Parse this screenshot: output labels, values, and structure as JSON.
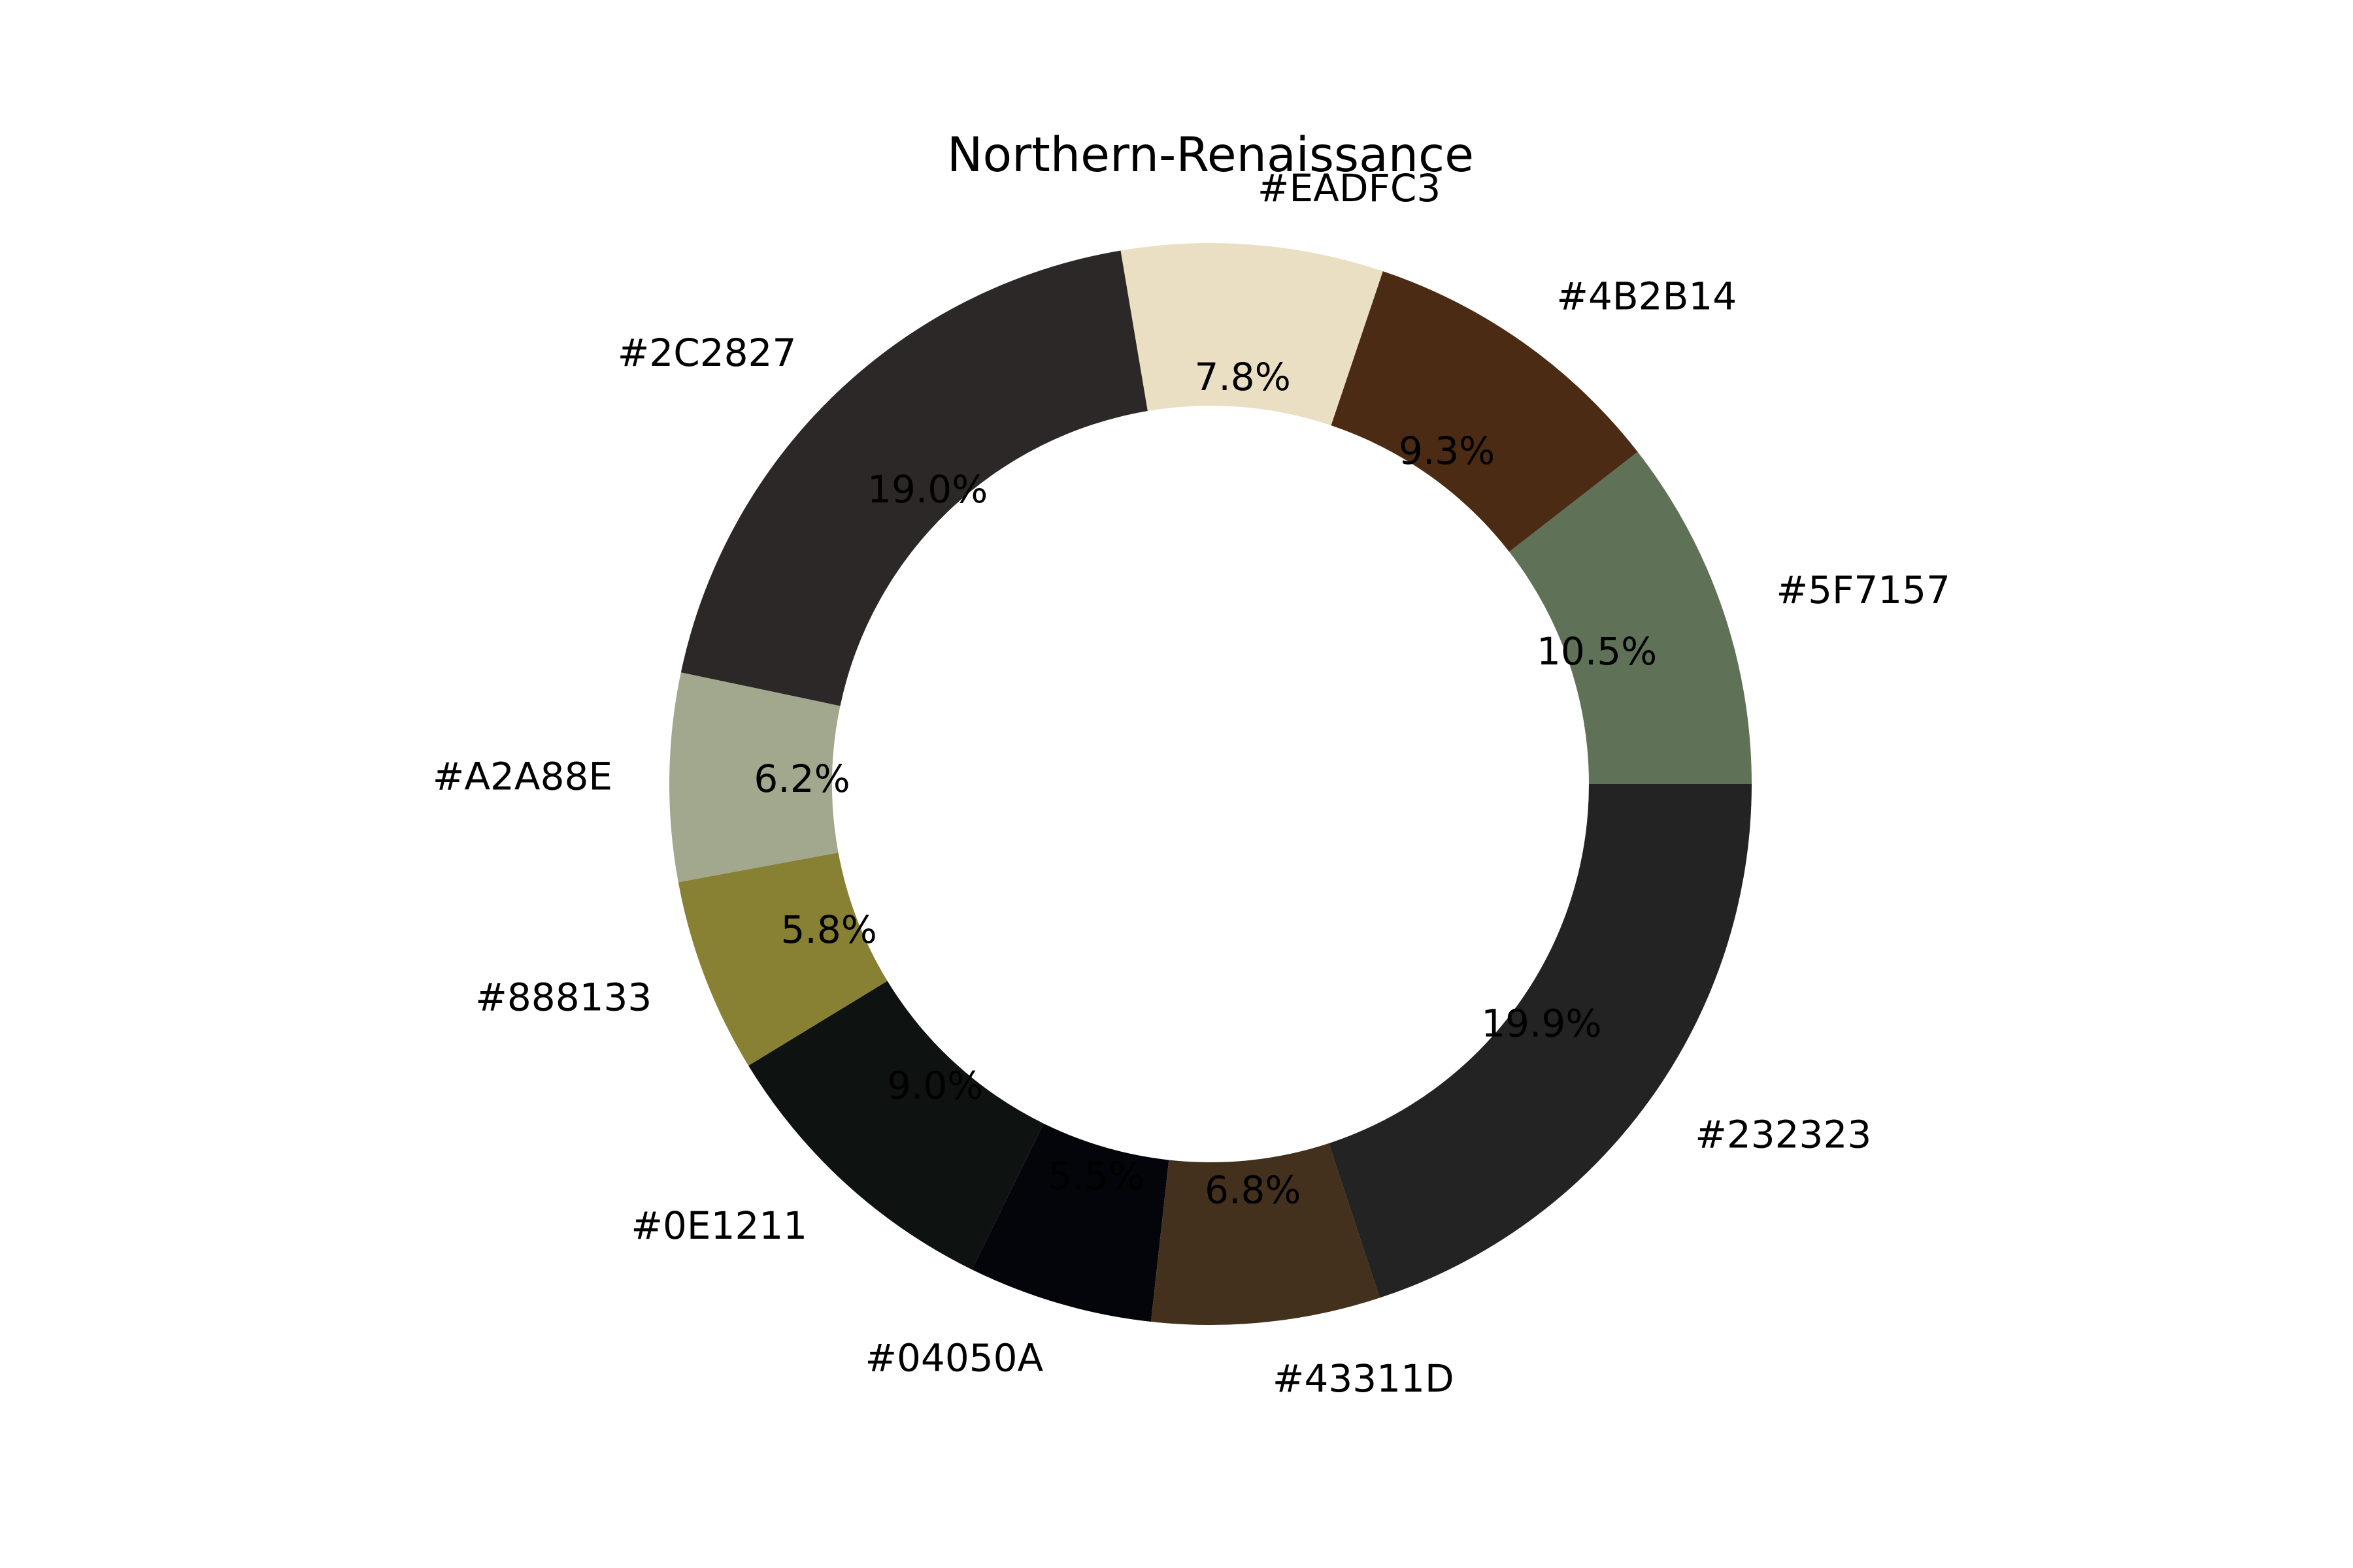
{
  "chart_data": {
    "type": "pie",
    "variant": "donut",
    "title": "Northern-Renaissance",
    "start_angle_deg": 0,
    "direction": "counterclockwise",
    "slices": [
      {
        "label": "#5F7157",
        "value": 10.5,
        "pct_label": "10.5%",
        "color": "#5F7157"
      },
      {
        "label": "#4B2B14",
        "value": 9.3,
        "pct_label": "9.3%",
        "color": "#4B2B14"
      },
      {
        "label": "#EADFC3",
        "value": 7.8,
        "pct_label": "7.8%",
        "color": "#EADFC3"
      },
      {
        "label": "#2C2827",
        "value": 19.0,
        "pct_label": "19.0%",
        "color": "#2C2827"
      },
      {
        "label": "#A2A88E",
        "value": 6.2,
        "pct_label": "6.2%",
        "color": "#A2A88E"
      },
      {
        "label": "#888133",
        "value": 5.8,
        "pct_label": "5.8%",
        "color": "#888133"
      },
      {
        "label": "#0E1211",
        "value": 9.0,
        "pct_label": "9.0%",
        "color": "#0E1211"
      },
      {
        "label": "#04050A",
        "value": 5.5,
        "pct_label": "5.5%",
        "color": "#04050A"
      },
      {
        "label": "#43311D",
        "value": 6.8,
        "pct_label": "6.8%",
        "color": "#43311D"
      },
      {
        "label": "#232323",
        "value": 19.9,
        "pct_label": "19.9%",
        "color": "#232323"
      }
    ]
  }
}
